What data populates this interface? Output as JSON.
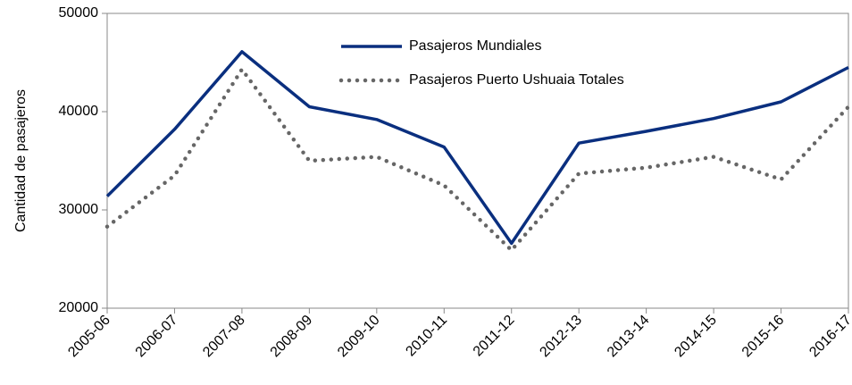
{
  "chart_data": {
    "type": "line",
    "y_label": "Cantidad de pasajeros",
    "categories": [
      "2005-06",
      "2006-07",
      "2007-08",
      "2008-09",
      "2009-10",
      "2010-11",
      "2011-12",
      "2012-13",
      "2013-14",
      "2014-15",
      "2015-16",
      "2016-17"
    ],
    "series": [
      {
        "name": "Pasajeros Mundiales",
        "color": "#0a2f7f",
        "dash": "solid",
        "values": [
          31400,
          38200,
          46100,
          40500,
          39200,
          36400,
          26600,
          36800,
          38000,
          39300,
          41000,
          44500
        ]
      },
      {
        "name": "Pasajeros Puerto Ushuaia Totales",
        "color": "#666666",
        "dash": "dotted",
        "values": [
          28300,
          33500,
          44300,
          35000,
          35400,
          32500,
          25900,
          33700,
          34300,
          35400,
          33100,
          40500
        ]
      }
    ],
    "ylim": [
      20000,
      50000
    ],
    "yticks": [
      20000,
      30000,
      40000,
      50000
    ],
    "grid": false,
    "legend": "top"
  }
}
